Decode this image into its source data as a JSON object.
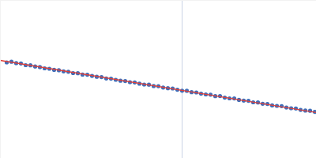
{
  "chart_data": {
    "type": "scatter",
    "xlim": [
      0,
      400
    ],
    "ylim": [
      0,
      200
    ],
    "xticks": [],
    "yticks": [],
    "tick_labels": false,
    "grid": false,
    "vline_x": 230,
    "series": [
      {
        "type": "scatter",
        "marker": "circle",
        "color": "#3f6fba",
        "x": [
          8,
          14,
          20,
          26,
          32,
          38,
          44,
          50,
          56,
          62,
          68,
          74,
          80,
          86,
          92,
          98,
          104,
          110,
          116,
          122,
          128,
          134,
          140,
          146,
          152,
          158,
          164,
          170,
          176,
          182,
          188,
          194,
          200,
          206,
          212,
          218,
          224,
          230,
          236,
          242,
          248,
          254,
          260,
          266,
          272,
          278,
          284,
          290,
          296,
          302,
          308,
          314,
          320,
          326,
          332,
          338,
          344,
          350,
          356,
          362,
          368,
          374,
          380,
          386,
          392,
          398
        ],
        "values": [
          121.5,
          122.3,
          120.6,
          120.2,
          118.0,
          117.8,
          116.3,
          115.6,
          114.0,
          113.5,
          112.1,
          111.6,
          110.2,
          109.7,
          108.0,
          107.8,
          106.1,
          105.9,
          104.4,
          103.3,
          102.9,
          101.2,
          100.9,
          99.5,
          98.3,
          97.9,
          96.5,
          96.2,
          94.6,
          93.5,
          93.3,
          91.6,
          91.4,
          89.7,
          88.8,
          88.5,
          86.9,
          85.7,
          85.6,
          83.8,
          83.5,
          81.9,
          81.0,
          80.7,
          78.8,
          78.9,
          76.9,
          76.0,
          75.9,
          74.1,
          73.2,
          72.9,
          71.0,
          70.8,
          69.2,
          68.9,
          67.1,
          66.5,
          66.2,
          64.4,
          63.5,
          63.2,
          61.4,
          60.6,
          60.3,
          58.9
        ]
      },
      {
        "type": "line",
        "line_style": "solid",
        "color": "#e0403a",
        "x": [
          0,
          400
        ],
        "values": [
          124,
          58
        ]
      }
    ]
  }
}
